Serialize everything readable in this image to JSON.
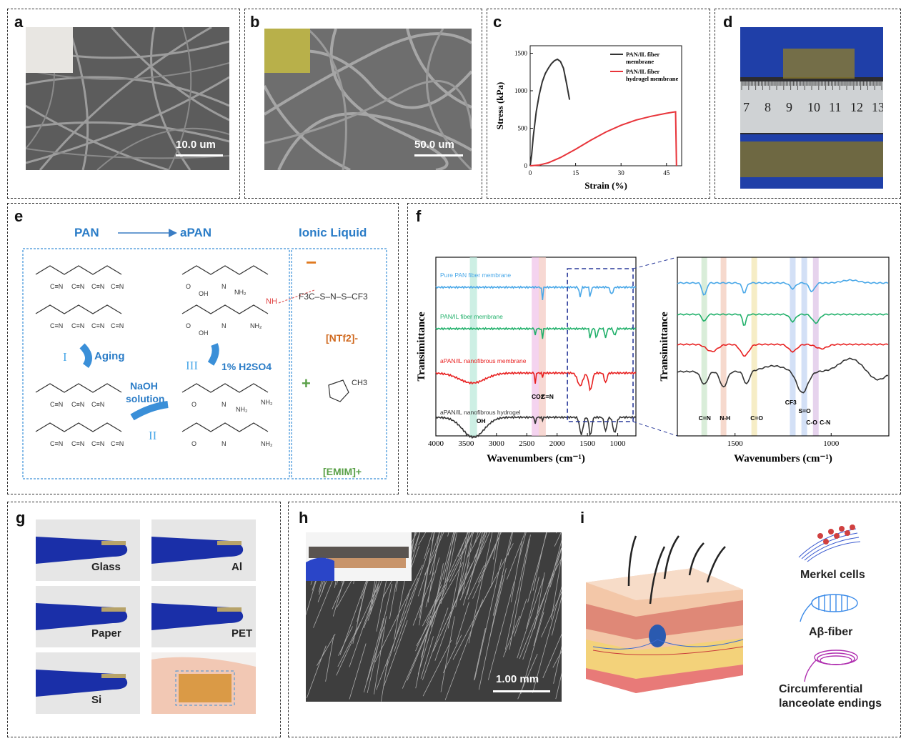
{
  "panels": {
    "a": {
      "label": "a",
      "scale": "10.0 um"
    },
    "b": {
      "label": "b",
      "scale": "50.0 um"
    },
    "c": {
      "label": "c"
    },
    "d": {
      "label": "d",
      "ruler_ticks": [
        "7",
        "8",
        "9",
        "10",
        "11",
        "12",
        "13"
      ]
    },
    "e": {
      "label": "e",
      "pan": "PAN",
      "apan": "aPAN",
      "ionic_liquid": "Ionic Liquid",
      "step1": "I",
      "aging": "Aging",
      "step2": "II",
      "naoh": "NaOH",
      "solution": "solution",
      "step3": "III",
      "acid": "1% H2SO4",
      "ntf2": "[NTf2]-",
      "emim": "[EMIM]+",
      "minus": "−",
      "plus": "+",
      "nh": "NH",
      "nh2": "NH2",
      "cn": "C≡N",
      "ch3": "CH3",
      "oh": "OH",
      "anion_formula": "F3C–S–N–S–CF3"
    },
    "f": {
      "label": "f",
      "ylabel": "Transimittance",
      "xlabel": "Wavenumbers (cm⁻¹)",
      "series_names": [
        "Pure PAN fiber membrane",
        "PAN/IL fiber membrane",
        "aPAN/IL nanofibrous membrane",
        "aPAN/IL nanofibrous hydrogel"
      ],
      "annotations": [
        "OH",
        "CO2",
        "C≡N"
      ],
      "zoom_annotations": [
        "C=N",
        "N-H",
        "C=O",
        "CF3",
        "S=O",
        "C-O",
        "C-N"
      ]
    },
    "g": {
      "label": "g",
      "substrates": [
        "Glass",
        "Al",
        "Paper",
        "PET",
        "Si"
      ]
    },
    "h": {
      "label": "h",
      "scale": "1.00 mm"
    },
    "i": {
      "label": "i",
      "legend": [
        "Merkel cells",
        "Aβ-fiber",
        "Circumferential",
        "lanceolate endings"
      ]
    }
  },
  "chart_data": [
    {
      "type": "line",
      "xlabel": "Strain (%)",
      "ylabel": "Stress (kPa)",
      "xlim": [
        0,
        50
      ],
      "ylim": [
        0,
        1600
      ],
      "xticks": [
        0,
        15,
        30,
        45
      ],
      "yticks": [
        0,
        500,
        1000,
        1500
      ],
      "series": [
        {
          "name": "PAN/IL fiber membrane",
          "color": "#333333",
          "x": [
            0,
            0.5,
            1,
            2,
            3,
            4,
            5,
            6,
            7,
            8,
            9,
            10,
            11,
            12,
            13
          ],
          "y": [
            0,
            150,
            380,
            720,
            950,
            1120,
            1230,
            1300,
            1360,
            1400,
            1420,
            1390,
            1300,
            1100,
            880
          ]
        },
        {
          "name": "PAN/IL fiber hydrogel membrane",
          "color": "#e8343a",
          "x": [
            0,
            3,
            6,
            10,
            15,
            20,
            25,
            30,
            35,
            40,
            45,
            48,
            48.3
          ],
          "y": [
            0,
            10,
            40,
            110,
            220,
            340,
            450,
            540,
            610,
            660,
            700,
            720,
            0
          ]
        }
      ],
      "legend": [
        "PAN/IL fiber",
        "membrane",
        "PAN/IL fiber",
        "hydrogel membrane"
      ]
    },
    {
      "type": "line",
      "xlabel": "Wavenumbers (cm⁻¹)",
      "ylabel": "Transimittance",
      "xlim": [
        4000,
        700
      ],
      "xticks": [
        4000,
        3500,
        3000,
        2500,
        2000,
        1500,
        1000
      ],
      "series": [
        {
          "name": "Pure PAN fiber membrane",
          "color": "#4aa8e8"
        },
        {
          "name": "PAN/IL fiber membrane",
          "color": "#20b06a"
        },
        {
          "name": "aPAN/IL nanofibrous membrane",
          "color": "#e82020"
        },
        {
          "name": "aPAN/IL nanofibrous hydrogel",
          "color": "#333333"
        }
      ]
    },
    {
      "type": "line",
      "xlabel": "Wavenumbers (cm⁻¹)",
      "ylabel": "Transimittance",
      "xlim": [
        1800,
        700
      ],
      "xticks": [
        1500,
        1000
      ]
    }
  ]
}
